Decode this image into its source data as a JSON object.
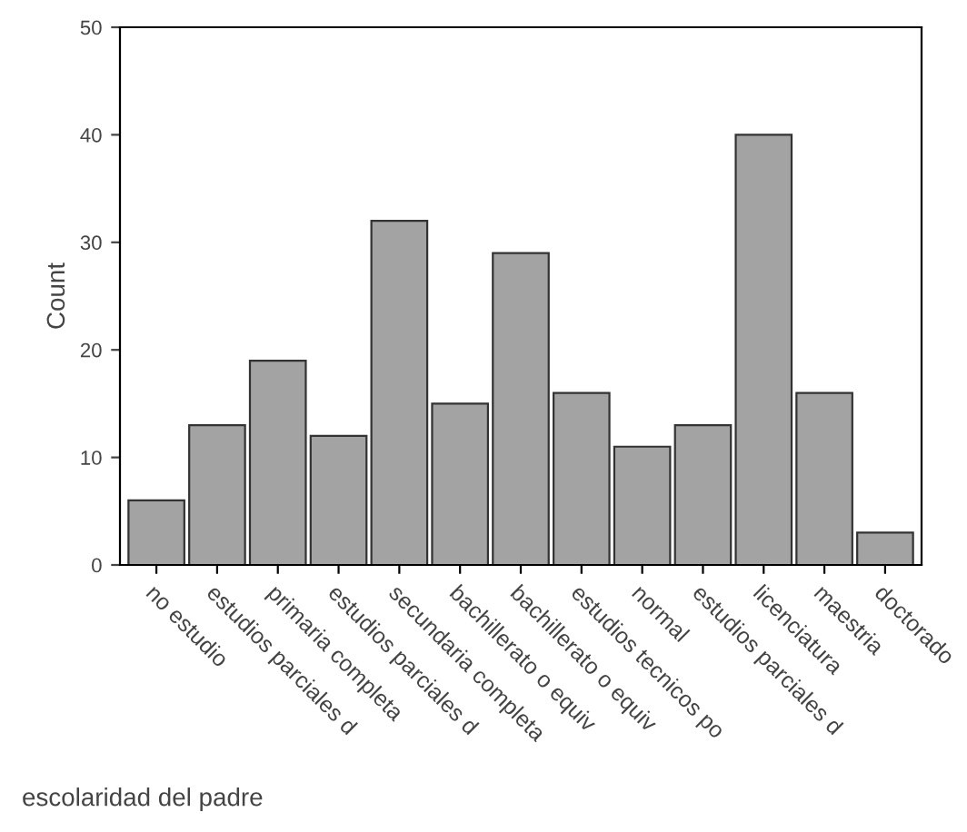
{
  "chart_data": {
    "type": "bar",
    "xlabel": "escolaridad del padre",
    "ylabel": "Count",
    "categories": [
      "no estudio",
      "estudios parciales d",
      "primaria completa",
      "estudios parciales d",
      "secundaria completa",
      "bachillerato o equiv",
      "bachillerato o equiv",
      "estudios tecnicos po",
      "normal",
      "estudios parciales d",
      "licenciatura",
      "maestria",
      "doctorado"
    ],
    "values": [
      6,
      13,
      19,
      12,
      32,
      15,
      29,
      16,
      11,
      13,
      40,
      16,
      3
    ],
    "color": "#a3a3a3",
    "ylim": [
      0,
      50
    ],
    "yticks": [
      0,
      10,
      20,
      30,
      40,
      50
    ],
    "grid": false
  }
}
